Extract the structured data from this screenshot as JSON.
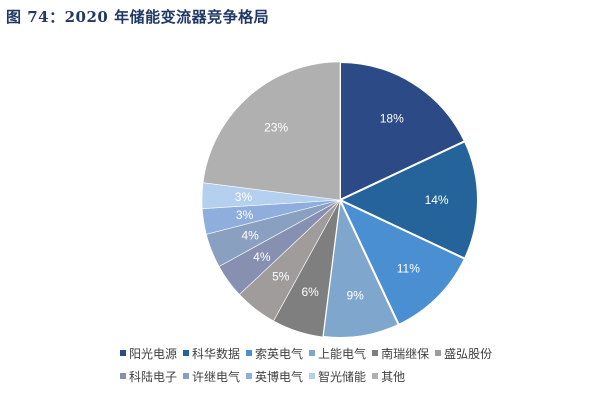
{
  "title": "图 74：2020 年储能变流器竞争格局",
  "chart_data": {
    "type": "pie",
    "title": "图 74：2020 年储能变流器竞争格局",
    "categories": [
      "阳光电源",
      "科华数据",
      "索英电气",
      "上能电气",
      "南瑞继保",
      "盛弘股份",
      "科陆电子",
      "许继电气",
      "英博电气",
      "智光储能",
      "其他"
    ],
    "values": [
      18,
      14,
      11,
      9,
      6,
      5,
      4,
      4,
      3,
      3,
      23
    ],
    "labels": [
      "18%",
      "14%",
      "11%",
      "9%",
      "6%",
      "5%",
      "4%",
      "4%",
      "3%",
      "3%",
      "23%"
    ],
    "colors": [
      "#2b4a86",
      "#25649a",
      "#4a8fd1",
      "#7fa6cc",
      "#7f7f7f",
      "#a09c9c",
      "#8790b0",
      "#8aa0c0",
      "#8faedd",
      "#b4d0ee",
      "#b0b0b0"
    ],
    "legend_position": "bottom",
    "start_angle_deg": 0
  },
  "legend": {
    "row1": [
      "阳光电源",
      "科华数据",
      "索英电气",
      "上能电气",
      "南瑞继保",
      "盛弘股份"
    ],
    "row2": [
      "科陆电子",
      "许继电气",
      "英博电气",
      "智光储能",
      "其他"
    ]
  }
}
